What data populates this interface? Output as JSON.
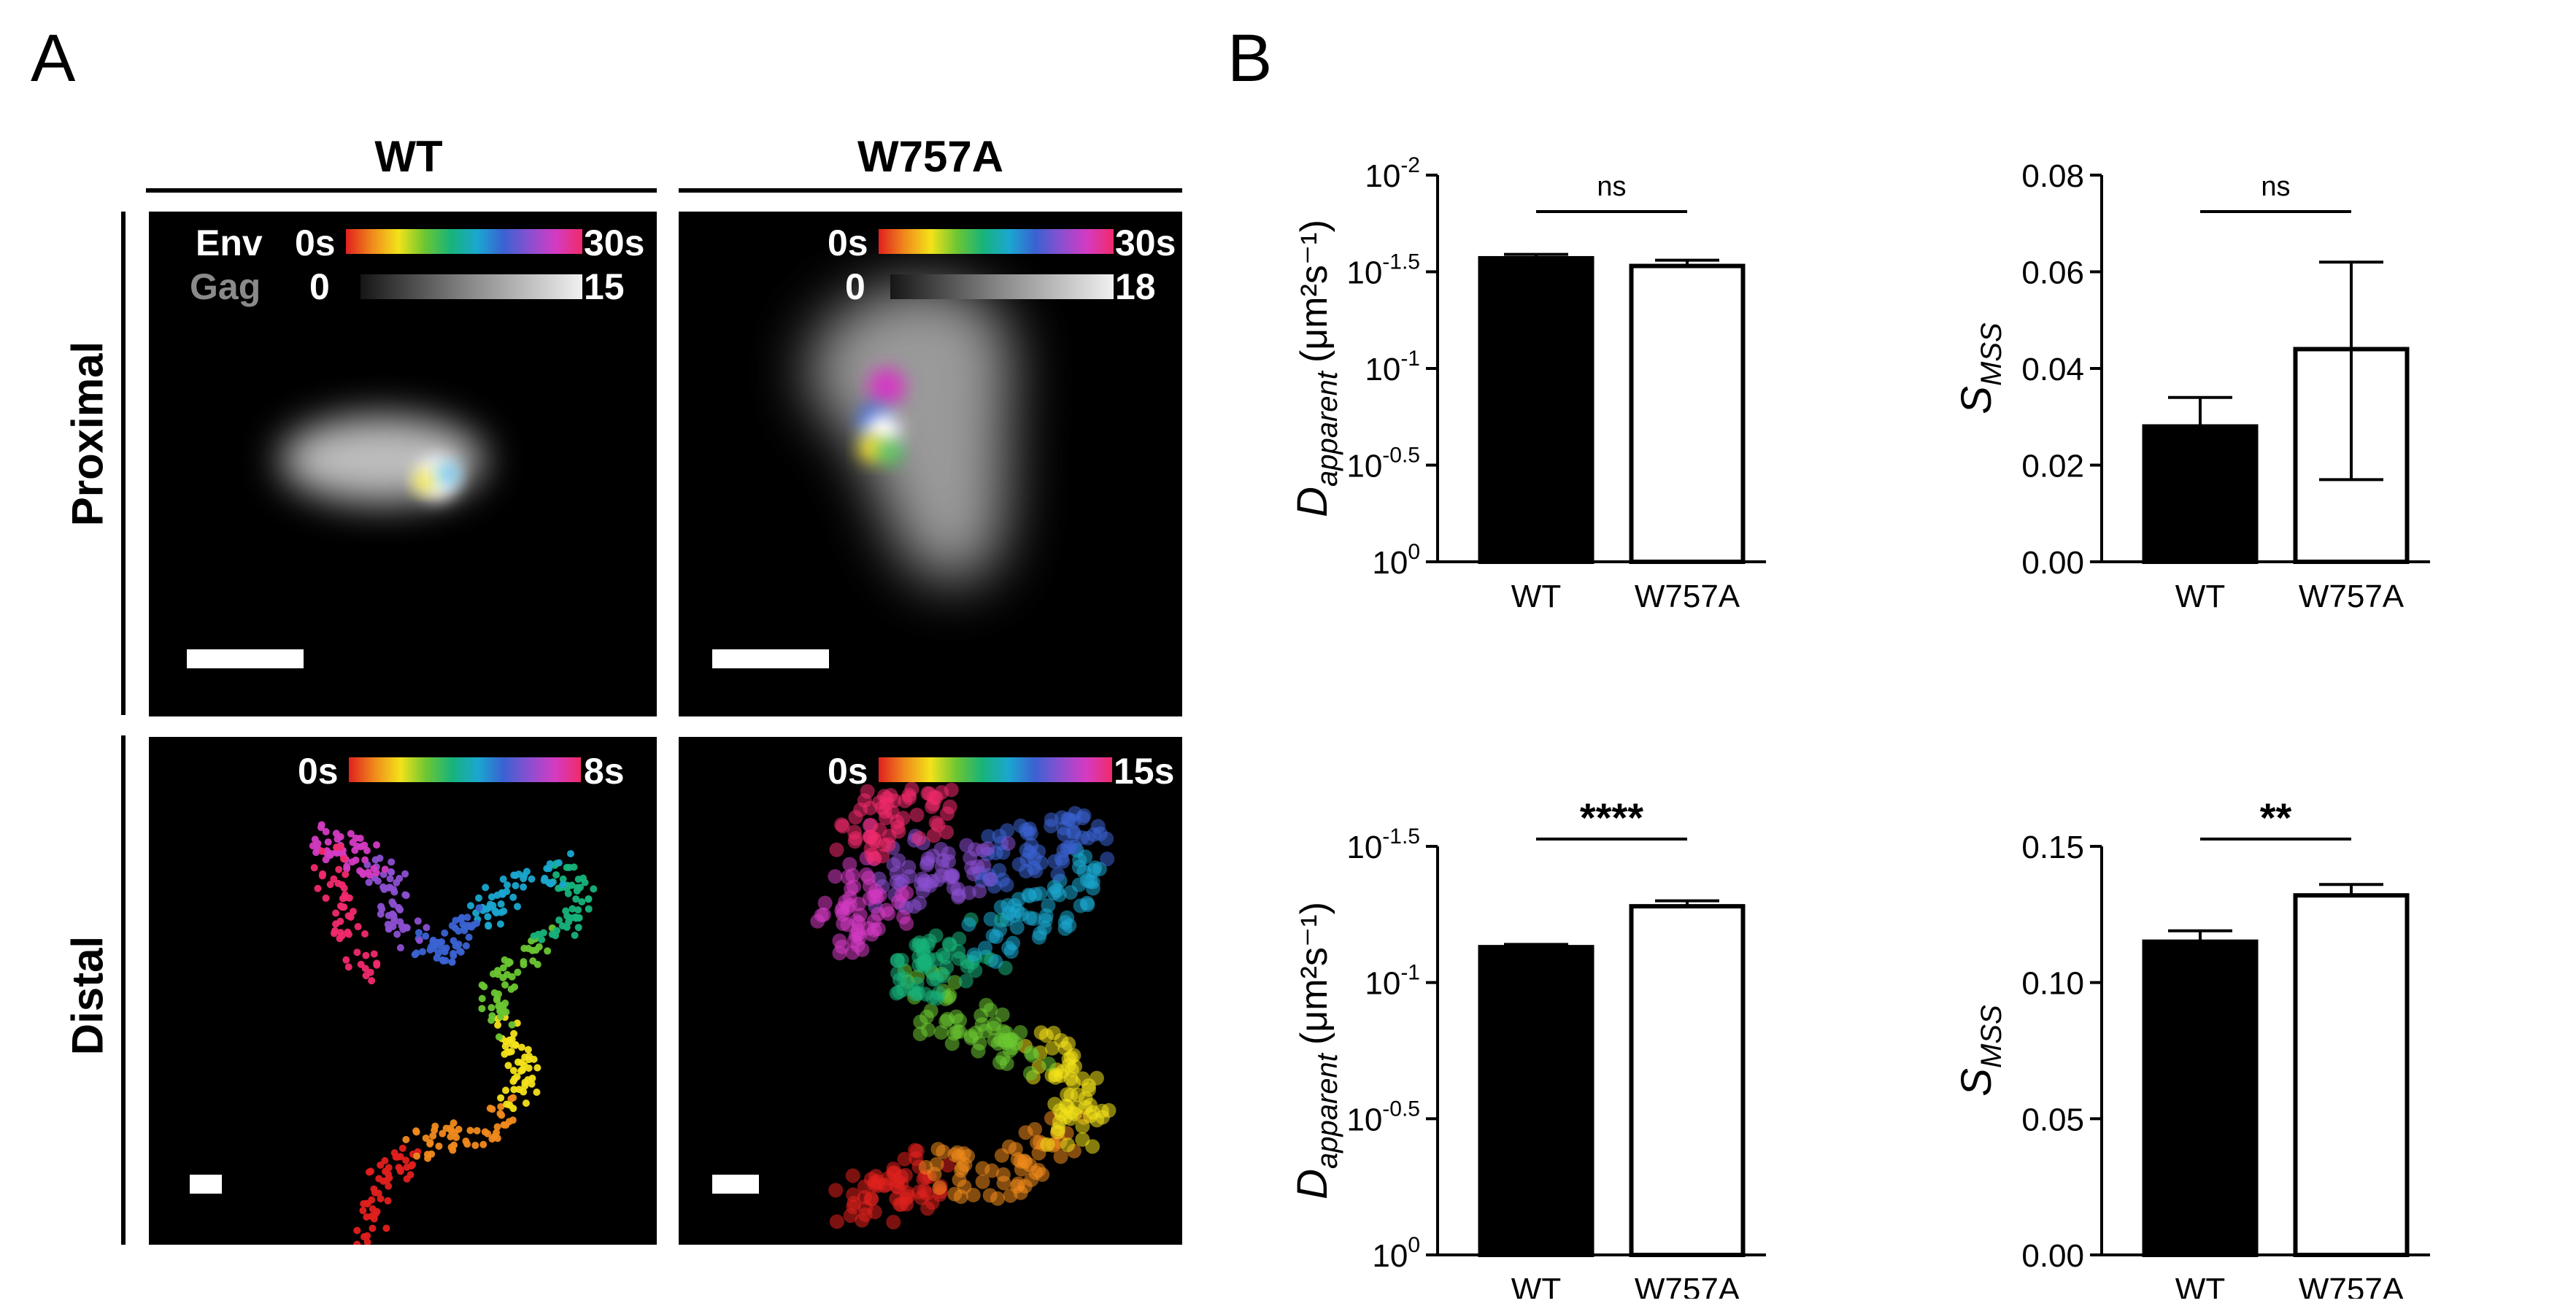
{
  "panel_a": {
    "letter": "A",
    "columns": [
      "WT",
      "W757A"
    ],
    "rows": [
      "Proximal",
      "Distal"
    ],
    "proximal_wt": {
      "env_label": "Env",
      "gag_label": "Gag",
      "time_start": "0s",
      "time_end": "30s",
      "gag_start": "0",
      "gag_end": "15"
    },
    "proximal_mut": {
      "time_start": "0s",
      "time_end": "30s",
      "gag_start": "0",
      "gag_end": "18"
    },
    "distal_wt": {
      "time_start": "0s",
      "time_end": "8s"
    },
    "distal_mut": {
      "time_start": "0s",
      "time_end": "15s"
    }
  },
  "panel_b": {
    "letter": "B"
  },
  "chart_data": [
    {
      "type": "bar",
      "id": "top-left",
      "categories": [
        "WT",
        "W757A"
      ],
      "values": [
        -1.57,
        -1.53
      ],
      "errors": [
        0.02,
        0.03
      ],
      "ylabel_main": "D",
      "ylabel_sub": "apparent",
      "ylabel_unit": "(μm²s⁻¹)",
      "y_scale": "log",
      "y_ticks": [
        {
          "value": 0,
          "base": "10",
          "exp": "0"
        },
        {
          "value": -0.5,
          "base": "10",
          "exp": "-0.5"
        },
        {
          "value": -1,
          "base": "10",
          "exp": "-1"
        },
        {
          "value": -1.5,
          "base": "10",
          "exp": "-1.5"
        },
        {
          "value": -2,
          "base": "10",
          "exp": "-2"
        }
      ],
      "ylim": [
        0,
        -2
      ],
      "fills": [
        "#000000",
        "#ffffff"
      ],
      "significance": "ns"
    },
    {
      "type": "bar",
      "id": "top-right",
      "categories": [
        "WT",
        "W757A"
      ],
      "values": [
        0.028,
        0.044
      ],
      "errors": [
        0.006,
        0.018
      ],
      "err_low": [
        0,
        0.017
      ],
      "ylabel_main": "S",
      "ylabel_sub": "MSS",
      "ylabel_unit": "",
      "y_scale": "linear",
      "y_ticks": [
        {
          "value": 0,
          "label": "0.00"
        },
        {
          "value": 0.02,
          "label": "0.02"
        },
        {
          "value": 0.04,
          "label": "0.04"
        },
        {
          "value": 0.06,
          "label": "0.06"
        },
        {
          "value": 0.08,
          "label": "0.08"
        }
      ],
      "ylim": [
        0,
        0.08
      ],
      "fills": [
        "#000000",
        "#ffffff"
      ],
      "significance": "ns"
    },
    {
      "type": "bar",
      "id": "bottom-left",
      "categories": [
        "WT",
        "W757A"
      ],
      "values": [
        -1.13,
        -1.28
      ],
      "errors": [
        0.01,
        0.02
      ],
      "ylabel_main": "D",
      "ylabel_sub": "apparent",
      "ylabel_unit": "(μm²s⁻¹)",
      "y_scale": "log",
      "y_ticks": [
        {
          "value": 0,
          "base": "10",
          "exp": "0"
        },
        {
          "value": -0.5,
          "base": "10",
          "exp": "-0.5"
        },
        {
          "value": -1,
          "base": "10",
          "exp": "-1"
        },
        {
          "value": -1.5,
          "base": "10",
          "exp": "-1.5"
        }
      ],
      "ylim": [
        0,
        -1.5
      ],
      "fills": [
        "#000000",
        "#ffffff"
      ],
      "significance": "****"
    },
    {
      "type": "bar",
      "id": "bottom-right",
      "categories": [
        "WT",
        "W757A"
      ],
      "values": [
        0.115,
        0.132
      ],
      "errors": [
        0.004,
        0.004
      ],
      "ylabel_main": "S",
      "ylabel_sub": "MSS",
      "ylabel_unit": "",
      "y_scale": "linear",
      "y_ticks": [
        {
          "value": 0,
          "label": "0.00"
        },
        {
          "value": 0.05,
          "label": "0.05"
        },
        {
          "value": 0.1,
          "label": "0.10"
        },
        {
          "value": 0.15,
          "label": "0.15"
        }
      ],
      "ylim": [
        0,
        0.15
      ],
      "fills": [
        "#000000",
        "#ffffff"
      ],
      "significance": "**"
    }
  ]
}
